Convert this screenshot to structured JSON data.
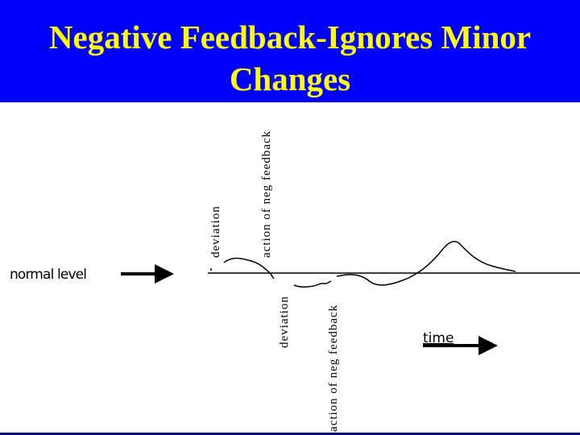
{
  "header": {
    "title": "Negative Feedback-Ignores Minor Changes"
  },
  "diagram": {
    "normal_level": "normal level",
    "time": "time",
    "labels": [
      "deviation",
      "action of neg feedback",
      "deviation",
      "action of neg feedback"
    ]
  }
}
